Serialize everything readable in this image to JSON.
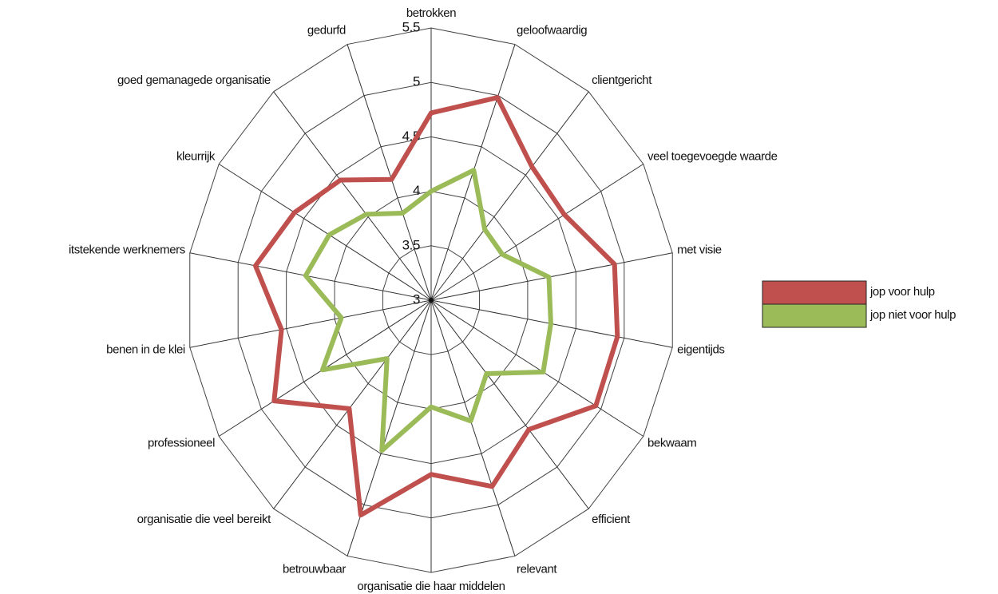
{
  "chart_data": {
    "type": "radar",
    "categories": [
      "betrokken",
      "geloofwaardig",
      "clientgericht",
      "veel toegevoegde waarde",
      "met visie",
      "eigentijds",
      "bekwaam",
      "efficient",
      "relevant",
      "organisatie die haar middelen",
      "betrouwbaar",
      "organisatie die veel bereikt",
      "professioneel",
      "benen in de klei",
      "itstekende werknemers",
      "kleurrijk",
      "goed gemanagede organisatie",
      "gedurfd"
    ],
    "series": [
      {
        "name": "jop voor hulp",
        "color": "#c0504d",
        "values": [
          4.72,
          4.98,
          4.6,
          4.57,
          4.9,
          4.93,
          4.94,
          4.55,
          4.82,
          4.6,
          5.1,
          4.3,
          4.85,
          4.55,
          4.82,
          4.61,
          4.44,
          4.18
        ]
      },
      {
        "name": "jop niet voor hulp",
        "color": "#9bbb59",
        "values": [
          4.0,
          4.27,
          3.85,
          3.84,
          4.22,
          4.24,
          4.32,
          3.88,
          4.18,
          3.98,
          4.47,
          3.7,
          4.28,
          3.93,
          4.3,
          4.2,
          4.03,
          3.85
        ]
      }
    ],
    "rlim": [
      3,
      5.5
    ],
    "rticks": [
      3,
      3.5,
      4,
      4.5,
      5,
      5.5
    ],
    "grid": true,
    "legend": "right"
  }
}
